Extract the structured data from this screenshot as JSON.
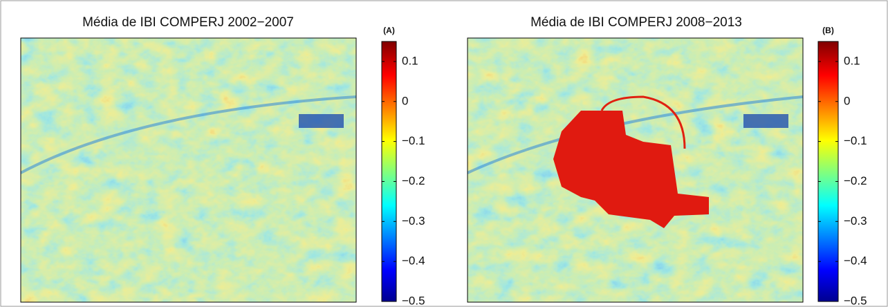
{
  "chart_data": [
    {
      "type": "heatmap",
      "title": "Média de IBI COMPERJ 2002−2007",
      "panel_label": "(A)",
      "colormap": "jet",
      "clim": [
        -0.5,
        0.15
      ],
      "colorbar_ticks": [
        0.1,
        0,
        {
          "value": -0.1,
          "label": "−0.1"
        },
        {
          "value": -0.2,
          "label": "−0.2"
        },
        {
          "value": -0.3,
          "label": "−0.3"
        },
        {
          "value": -0.4,
          "label": "−0.4"
        },
        {
          "value": -0.5,
          "label": "−0.5"
        }
      ]
    },
    {
      "type": "heatmap",
      "title": "Média de IBI COMPERJ 2008−2013",
      "panel_label": "(B)",
      "colormap": "jet",
      "clim": [
        -0.5,
        0.15
      ],
      "colorbar_ticks": [
        0.1,
        0,
        {
          "value": -0.1,
          "label": "−0.1"
        },
        {
          "value": -0.2,
          "label": "−0.2"
        },
        {
          "value": -0.3,
          "label": "−0.3"
        },
        {
          "value": -0.4,
          "label": "−0.4"
        },
        {
          "value": -0.5,
          "label": "−0.5"
        }
      ]
    }
  ]
}
